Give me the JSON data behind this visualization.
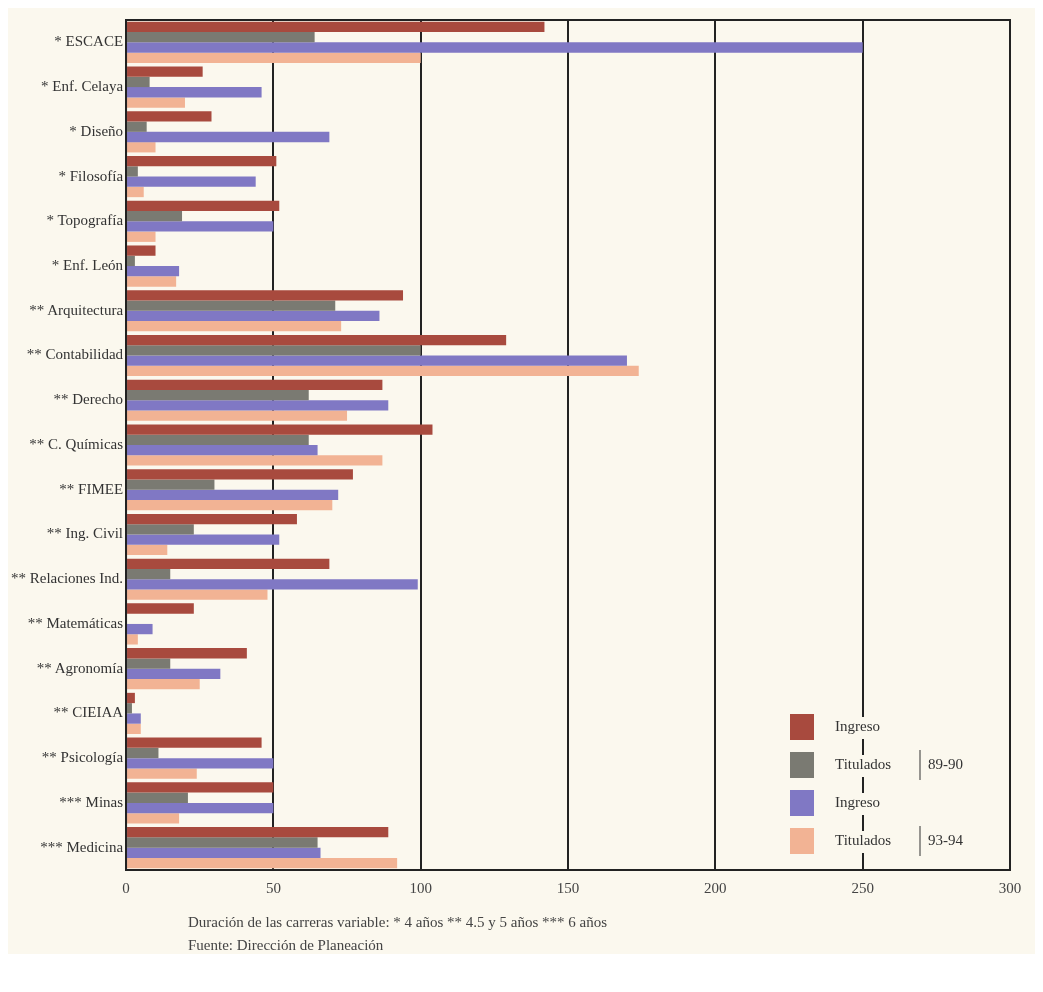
{
  "chart_data": {
    "type": "bar",
    "orientation": "horizontal",
    "categories": [
      "* ESCACE",
      "* Enf. Celaya",
      "* Diseño",
      "* Filosofía",
      "* Topografía",
      "* Enf. León",
      "** Arquitectura",
      "** Contabilidad",
      "** Derecho",
      "** C. Químicas",
      "** FIMEE",
      "** Ing. Civil",
      "** Relaciones Ind.",
      "** Matemáticas",
      "** Agronomía",
      "** CIEIAA",
      "** Psicología",
      "*** Minas",
      "*** Medicina"
    ],
    "series": [
      {
        "name": "Ingreso",
        "color": "#a84a3e",
        "values": [
          142,
          26,
          29,
          51,
          52,
          10,
          94,
          129,
          87,
          104,
          77,
          58,
          69,
          23,
          41,
          3,
          46,
          50,
          89
        ]
      },
      {
        "name": "Titulados",
        "color": "#7a7a72",
        "values": [
          64,
          8,
          7,
          4,
          19,
          3,
          71,
          100,
          62,
          62,
          30,
          23,
          15,
          0,
          15,
          2,
          11,
          21,
          65
        ]
      },
      {
        "name": "Ingreso",
        "color": "#8078c4",
        "values": [
          250,
          46,
          69,
          44,
          50,
          18,
          86,
          170,
          89,
          65,
          72,
          52,
          99,
          9,
          32,
          5,
          50,
          50,
          66
        ]
      },
      {
        "name": "Titulados",
        "color": "#f2b394",
        "values": [
          100,
          20,
          10,
          6,
          10,
          17,
          73,
          174,
          75,
          87,
          70,
          14,
          48,
          4,
          25,
          5,
          24,
          18,
          92
        ]
      }
    ],
    "xlim": [
      0,
      300
    ],
    "xticks": [
      0,
      50,
      100,
      150,
      200,
      250,
      300
    ],
    "grid": "x",
    "legend": "bottom right",
    "annotations": [
      "89-90",
      "93-94",
      "Duración de las carreras variable: * 4 años ** 4.5 y 5 años *** 6 años",
      "Fuente: Dirección de Planeación"
    ]
  }
}
